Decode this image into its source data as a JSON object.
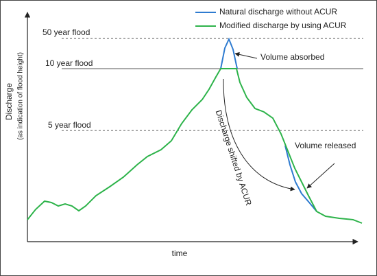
{
  "legend": {
    "items": [
      "Natural discharge without ACUR",
      "Modified discharge by using ACUR"
    ]
  },
  "levels": [
    "50 year flood",
    "10 year flood",
    "5 year flood"
  ],
  "annotations": [
    "Volume absorbed",
    "Volume released",
    "Discharge shifted by ACUR"
  ],
  "y_axis": {
    "label": "Discharge",
    "sublabel": "(as indication of flood height)"
  },
  "x_axis": {
    "label": "time"
  }
}
